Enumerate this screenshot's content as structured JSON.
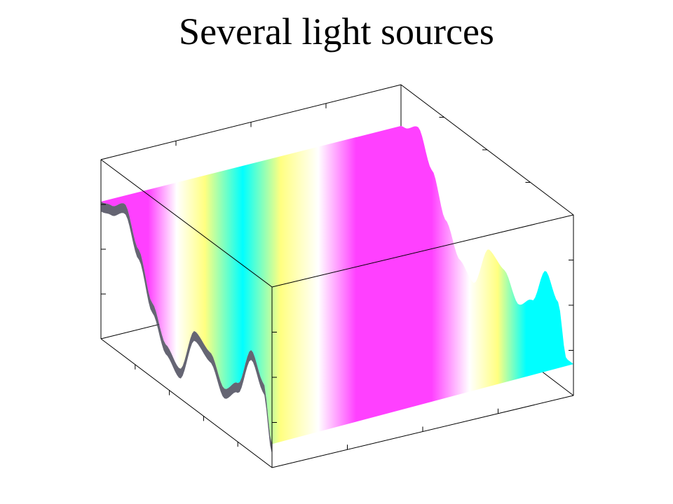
{
  "chart_data": {
    "type": "surface",
    "title": "Several light sources",
    "xlabel": "",
    "ylabel": "",
    "zlabel": "",
    "grid": false,
    "legend": "none",
    "surface_profile": {
      "u": [
        0.0,
        0.06,
        0.14,
        0.22,
        0.3,
        0.38,
        0.46,
        0.55,
        0.64,
        0.72,
        0.8,
        0.88,
        0.95,
        1.0
      ],
      "height": [
        0.7,
        0.72,
        0.78,
        0.6,
        0.38,
        0.22,
        0.15,
        0.4,
        0.35,
        0.22,
        0.3,
        0.52,
        0.4,
        0.12
      ]
    },
    "palette": {
      "magenta": "#ff40ff",
      "cyan": "#00ffff",
      "yellow": "#ffff80",
      "highlight": "#ffffff",
      "shadow": "#4a4a5a",
      "axes": "#000000"
    }
  }
}
